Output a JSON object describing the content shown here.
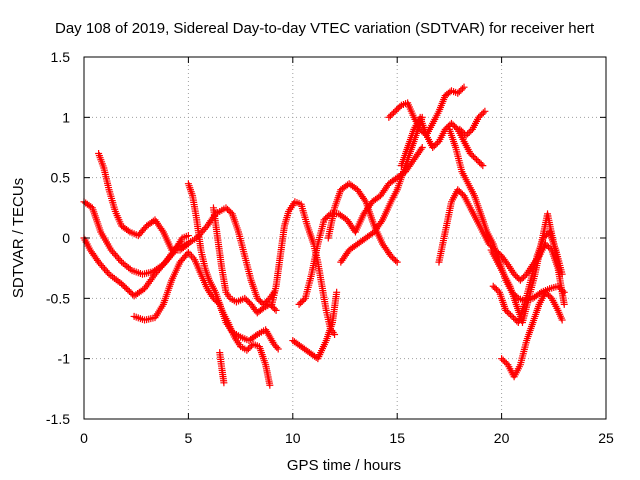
{
  "chart_data": {
    "type": "scatter",
    "title": "Day 108 of 2019, Sidereal Day-to-day VTEC variation (SDTVAR) for receiver hert",
    "xlabel": "GPS time / hours",
    "ylabel": "SDTVAR / TECUs",
    "xlim": [
      0,
      25
    ],
    "ylim": [
      -1.5,
      1.5
    ],
    "xticks": [
      0,
      5,
      10,
      15,
      20,
      25
    ],
    "xtick_labels": [
      "0",
      "5",
      "10",
      "15",
      "20",
      "25"
    ],
    "yticks": [
      -1.5,
      -1,
      -0.5,
      0,
      0.5,
      1,
      1.5
    ],
    "ytick_labels": [
      "-1.5",
      "-1",
      "-0.5",
      "0",
      "0.5",
      "1",
      "1.5"
    ],
    "grid": true,
    "marker": "+",
    "marker_color": "#ff0000",
    "series": [
      {
        "name": "track-1",
        "points": [
          [
            0.0,
            0.0
          ],
          [
            0.3,
            -0.1
          ],
          [
            0.7,
            -0.2
          ],
          [
            1.2,
            -0.3
          ],
          [
            1.8,
            -0.38
          ],
          [
            2.4,
            -0.48
          ],
          [
            2.9,
            -0.42
          ],
          [
            3.4,
            -0.3
          ],
          [
            3.9,
            -0.2
          ],
          [
            4.4,
            -0.08
          ],
          [
            4.9,
            -0.05
          ],
          [
            5.4,
            0.0
          ],
          [
            5.9,
            0.1
          ],
          [
            6.3,
            0.2
          ],
          [
            6.8,
            0.25
          ],
          [
            7.1,
            0.2
          ],
          [
            7.4,
            0.05
          ],
          [
            7.7,
            -0.15
          ],
          [
            8.0,
            -0.35
          ],
          [
            8.3,
            -0.5
          ],
          [
            8.6,
            -0.55
          ],
          [
            8.9,
            -0.5
          ],
          [
            9.1,
            -0.45
          ]
        ]
      },
      {
        "name": "track-2",
        "points": [
          [
            0.0,
            0.3
          ],
          [
            0.4,
            0.25
          ],
          [
            0.8,
            0.05
          ],
          [
            1.3,
            -0.1
          ],
          [
            1.8,
            -0.2
          ],
          [
            2.3,
            -0.27
          ],
          [
            2.8,
            -0.3
          ],
          [
            3.3,
            -0.28
          ],
          [
            3.8,
            -0.22
          ],
          [
            4.3,
            -0.12
          ],
          [
            4.7,
            0.0
          ],
          [
            5.0,
            0.02
          ]
        ]
      },
      {
        "name": "track-3",
        "points": [
          [
            0.7,
            0.7
          ],
          [
            0.95,
            0.58
          ],
          [
            1.2,
            0.4
          ],
          [
            1.5,
            0.22
          ],
          [
            1.8,
            0.1
          ],
          [
            2.2,
            0.05
          ],
          [
            2.6,
            0.02
          ],
          [
            3.0,
            0.1
          ],
          [
            3.4,
            0.15
          ],
          [
            3.8,
            0.05
          ],
          [
            4.2,
            -0.1
          ],
          [
            4.6,
            -0.1
          ],
          [
            5.0,
            -0.05
          ]
        ]
      },
      {
        "name": "track-4",
        "points": [
          [
            2.4,
            -0.65
          ],
          [
            2.9,
            -0.68
          ],
          [
            3.4,
            -0.66
          ],
          [
            3.8,
            -0.55
          ],
          [
            4.2,
            -0.35
          ],
          [
            4.6,
            -0.2
          ],
          [
            5.0,
            -0.12
          ],
          [
            5.3,
            -0.18
          ],
          [
            5.6,
            -0.3
          ],
          [
            5.9,
            -0.42
          ],
          [
            6.2,
            -0.5
          ],
          [
            6.5,
            -0.55
          ],
          [
            6.8,
            -0.7
          ],
          [
            7.1,
            -0.78
          ],
          [
            7.5,
            -0.82
          ],
          [
            7.9,
            -0.85
          ],
          [
            8.3,
            -0.8
          ],
          [
            8.7,
            -0.76
          ],
          [
            9.1,
            -0.88
          ],
          [
            9.3,
            -0.92
          ]
        ]
      },
      {
        "name": "track-5",
        "points": [
          [
            5.0,
            0.45
          ],
          [
            5.2,
            0.35
          ],
          [
            5.4,
            0.15
          ],
          [
            5.6,
            -0.1
          ],
          [
            5.8,
            -0.25
          ],
          [
            6.0,
            -0.35
          ],
          [
            6.3,
            -0.45
          ],
          [
            6.6,
            -0.6
          ],
          [
            6.9,
            -0.7
          ],
          [
            7.2,
            -0.82
          ],
          [
            7.5,
            -0.9
          ],
          [
            7.8,
            -0.93
          ],
          [
            8.1,
            -0.88
          ],
          [
            8.4,
            -0.9
          ],
          [
            8.7,
            -1.05
          ],
          [
            8.9,
            -1.22
          ]
        ]
      },
      {
        "name": "track-6",
        "points": [
          [
            6.5,
            -0.95
          ],
          [
            6.6,
            -1.08
          ],
          [
            6.7,
            -1.2
          ]
        ]
      },
      {
        "name": "track-7",
        "points": [
          [
            6.2,
            0.25
          ],
          [
            6.4,
            0.0
          ],
          [
            6.6,
            -0.25
          ],
          [
            6.8,
            -0.45
          ],
          [
            7.0,
            -0.5
          ],
          [
            7.3,
            -0.53
          ],
          [
            7.7,
            -0.5
          ],
          [
            8.0,
            -0.55
          ],
          [
            8.3,
            -0.62
          ],
          [
            8.6,
            -0.58
          ],
          [
            8.9,
            -0.55
          ],
          [
            9.2,
            -0.6
          ]
        ]
      },
      {
        "name": "track-8",
        "points": [
          [
            9.0,
            -0.55
          ],
          [
            9.2,
            -0.4
          ],
          [
            9.4,
            -0.15
          ],
          [
            9.6,
            0.1
          ],
          [
            9.8,
            0.22
          ],
          [
            10.1,
            0.3
          ],
          [
            10.4,
            0.28
          ],
          [
            10.7,
            0.1
          ],
          [
            11.0,
            -0.05
          ],
          [
            11.2,
            -0.2
          ],
          [
            11.4,
            -0.4
          ],
          [
            11.6,
            -0.6
          ],
          [
            11.8,
            -0.75
          ],
          [
            12.0,
            -0.8
          ]
        ]
      },
      {
        "name": "track-9",
        "points": [
          [
            10.3,
            -0.55
          ],
          [
            10.6,
            -0.5
          ],
          [
            10.9,
            -0.3
          ],
          [
            11.2,
            -0.05
          ],
          [
            11.5,
            0.15
          ],
          [
            11.8,
            0.2
          ],
          [
            12.2,
            0.2
          ],
          [
            12.6,
            0.15
          ],
          [
            13.0,
            0.05
          ],
          [
            13.4,
            0.2
          ],
          [
            13.8,
            0.3
          ],
          [
            14.2,
            0.35
          ],
          [
            14.6,
            0.45
          ],
          [
            15.0,
            0.5
          ],
          [
            15.4,
            0.55
          ],
          [
            15.8,
            0.65
          ],
          [
            16.2,
            0.75
          ]
        ]
      },
      {
        "name": "track-10",
        "points": [
          [
            11.7,
            0.0
          ],
          [
            12.0,
            0.25
          ],
          [
            12.3,
            0.4
          ],
          [
            12.7,
            0.45
          ],
          [
            13.1,
            0.4
          ],
          [
            13.5,
            0.3
          ],
          [
            13.9,
            0.1
          ],
          [
            14.3,
            -0.05
          ],
          [
            14.7,
            -0.15
          ],
          [
            15.0,
            -0.2
          ]
        ]
      },
      {
        "name": "track-11",
        "points": [
          [
            10.0,
            -0.85
          ],
          [
            10.4,
            -0.9
          ],
          [
            10.8,
            -0.95
          ],
          [
            11.2,
            -1.0
          ],
          [
            11.6,
            -0.85
          ],
          [
            11.9,
            -0.7
          ],
          [
            12.1,
            -0.45
          ]
        ]
      },
      {
        "name": "track-12",
        "points": [
          [
            12.3,
            -0.2
          ],
          [
            12.7,
            -0.1
          ],
          [
            13.1,
            -0.05
          ],
          [
            13.5,
            0.0
          ],
          [
            13.9,
            0.05
          ],
          [
            14.3,
            0.15
          ],
          [
            14.7,
            0.3
          ],
          [
            15.0,
            0.4
          ],
          [
            15.3,
            0.55
          ],
          [
            15.6,
            0.7
          ],
          [
            15.9,
            0.85
          ],
          [
            16.2,
            1.0
          ]
        ]
      },
      {
        "name": "track-13",
        "points": [
          [
            14.6,
            1.0
          ],
          [
            14.9,
            1.05
          ],
          [
            15.2,
            1.1
          ],
          [
            15.5,
            1.12
          ],
          [
            15.8,
            1.0
          ],
          [
            16.1,
            0.9
          ],
          [
            16.4,
            0.85
          ],
          [
            16.7,
            0.95
          ],
          [
            17.0,
            1.05
          ],
          [
            17.3,
            1.18
          ],
          [
            17.6,
            1.22
          ],
          [
            17.9,
            1.2
          ],
          [
            18.2,
            1.25
          ]
        ]
      },
      {
        "name": "track-14",
        "points": [
          [
            15.2,
            0.6
          ],
          [
            15.5,
            0.75
          ],
          [
            15.8,
            0.9
          ],
          [
            16.1,
            1.0
          ],
          [
            16.4,
            0.85
          ],
          [
            16.7,
            0.75
          ],
          [
            17.0,
            0.8
          ],
          [
            17.3,
            0.9
          ],
          [
            17.6,
            0.95
          ],
          [
            17.9,
            0.9
          ],
          [
            18.2,
            0.8
          ],
          [
            18.5,
            0.7
          ],
          [
            18.8,
            0.65
          ],
          [
            19.1,
            0.6
          ]
        ]
      },
      {
        "name": "track-15",
        "points": [
          [
            17.5,
            0.9
          ],
          [
            17.8,
            0.75
          ],
          [
            18.1,
            0.55
          ],
          [
            18.4,
            0.45
          ],
          [
            18.7,
            0.35
          ],
          [
            19.0,
            0.2
          ],
          [
            19.3,
            0.05
          ],
          [
            19.6,
            -0.05
          ],
          [
            19.9,
            -0.2
          ],
          [
            20.2,
            -0.35
          ],
          [
            20.5,
            -0.45
          ],
          [
            20.8,
            -0.5
          ],
          [
            21.1,
            -0.52
          ],
          [
            21.5,
            -0.5
          ],
          [
            21.9,
            -0.45
          ],
          [
            22.3,
            -0.42
          ],
          [
            22.7,
            -0.4
          ],
          [
            23.0,
            -0.45
          ]
        ]
      },
      {
        "name": "track-16",
        "points": [
          [
            18.0,
            0.9
          ],
          [
            18.3,
            0.85
          ],
          [
            18.6,
            0.9
          ],
          [
            18.9,
            1.0
          ],
          [
            19.2,
            1.05
          ]
        ]
      },
      {
        "name": "track-17",
        "points": [
          [
            17.0,
            -0.2
          ],
          [
            17.3,
            0.05
          ],
          [
            17.6,
            0.3
          ],
          [
            17.9,
            0.4
          ],
          [
            18.2,
            0.35
          ],
          [
            18.5,
            0.25
          ],
          [
            18.8,
            0.15
          ],
          [
            19.1,
            0.05
          ],
          [
            19.4,
            -0.05
          ],
          [
            19.7,
            -0.1
          ],
          [
            20.0,
            -0.15
          ],
          [
            20.3,
            -0.22
          ],
          [
            20.6,
            -0.3
          ],
          [
            20.9,
            -0.35
          ],
          [
            21.2,
            -0.3
          ],
          [
            21.5,
            -0.22
          ],
          [
            21.8,
            -0.15
          ],
          [
            22.1,
            -0.05
          ],
          [
            22.4,
            -0.1
          ],
          [
            22.7,
            -0.25
          ],
          [
            23.0,
            -0.55
          ]
        ]
      },
      {
        "name": "track-18",
        "points": [
          [
            19.5,
            -0.1
          ],
          [
            19.8,
            -0.2
          ],
          [
            20.1,
            -0.3
          ],
          [
            20.4,
            -0.4
          ],
          [
            20.7,
            -0.55
          ],
          [
            21.0,
            -0.7
          ],
          [
            21.3,
            -0.5
          ],
          [
            21.6,
            -0.3
          ],
          [
            21.9,
            -0.05
          ],
          [
            22.2,
            0.2
          ],
          [
            22.5,
            -0.05
          ],
          [
            22.8,
            -0.3
          ]
        ]
      },
      {
        "name": "track-19",
        "points": [
          [
            20.0,
            -1.0
          ],
          [
            20.3,
            -1.05
          ],
          [
            20.6,
            -1.15
          ],
          [
            20.9,
            -1.05
          ],
          [
            21.2,
            -0.85
          ],
          [
            21.5,
            -0.7
          ],
          [
            21.8,
            -0.55
          ],
          [
            22.1,
            -0.45
          ],
          [
            22.4,
            -0.5
          ],
          [
            22.7,
            -0.6
          ],
          [
            22.9,
            -0.68
          ]
        ]
      },
      {
        "name": "track-20",
        "points": [
          [
            19.6,
            -0.4
          ],
          [
            19.9,
            -0.45
          ],
          [
            20.2,
            -0.6
          ],
          [
            20.5,
            -0.65
          ],
          [
            20.8,
            -0.7
          ],
          [
            21.1,
            -0.55
          ],
          [
            21.4,
            -0.35
          ],
          [
            21.7,
            -0.15
          ],
          [
            22.0,
            0.0
          ],
          [
            22.3,
            0.05
          ],
          [
            22.6,
            -0.1
          ],
          [
            22.9,
            -0.3
          ]
        ]
      }
    ]
  }
}
